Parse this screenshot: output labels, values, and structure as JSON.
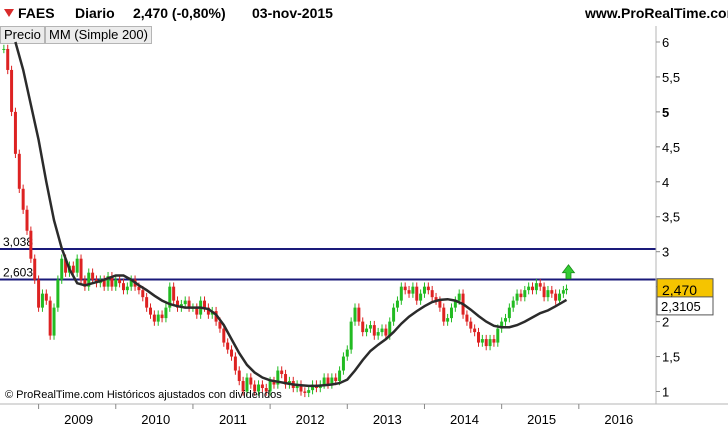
{
  "header": {
    "symbol": "FAES",
    "period": "Diario",
    "quote": "2,470 (-0,80%)",
    "date": "03-nov-2015",
    "site": "www.ProRealTime.com"
  },
  "legend": {
    "price": "Precio",
    "ma": "MM (Simple 200)"
  },
  "footer": {
    "copyright": "© ProRealTime.com Históricos ajustados con dividendos"
  },
  "colors": {
    "up": "#22bb22",
    "down": "#dd2222",
    "ma": "#2b2b2b",
    "hline": "#1a1a7a",
    "last_bg": "#f5c400",
    "arrow": "#33cc33"
  },
  "chart_data": {
    "type": "line",
    "title": "",
    "xlabel": "",
    "ylabel": "",
    "x_ticks": [
      "2009",
      "2010",
      "2011",
      "2012",
      "2013",
      "2014",
      "2015",
      "2016"
    ],
    "y_ticks": [
      "6",
      "5,5",
      "5",
      "4,5",
      "4",
      "3,5",
      "3",
      "2,5",
      "2",
      "1,5",
      "1"
    ],
    "ylim": [
      0.85,
      6.2
    ],
    "xlim": [
      2008.5,
      2017.0
    ],
    "grid": false,
    "series": [
      {
        "name": "Precio",
        "style": "candlestick",
        "points": [
          [
            2008.55,
            5.9
          ],
          [
            2008.6,
            5.6
          ],
          [
            2008.65,
            5.0
          ],
          [
            2008.7,
            4.4
          ],
          [
            2008.75,
            3.9
          ],
          [
            2008.8,
            3.6
          ],
          [
            2008.85,
            3.3
          ],
          [
            2008.9,
            2.9
          ],
          [
            2008.95,
            2.6
          ],
          [
            2009.0,
            2.2
          ],
          [
            2009.05,
            2.4
          ],
          [
            2009.1,
            2.3
          ],
          [
            2009.15,
            1.8
          ],
          [
            2009.2,
            2.2
          ],
          [
            2009.25,
            2.6
          ],
          [
            2009.3,
            2.9
          ],
          [
            2009.35,
            2.7
          ],
          [
            2009.4,
            2.8
          ],
          [
            2009.45,
            2.7
          ],
          [
            2009.5,
            2.9
          ],
          [
            2009.55,
            2.6
          ],
          [
            2009.6,
            2.5
          ],
          [
            2009.65,
            2.7
          ],
          [
            2009.7,
            2.6
          ],
          [
            2009.75,
            2.55
          ],
          [
            2009.8,
            2.6
          ],
          [
            2009.85,
            2.5
          ],
          [
            2009.9,
            2.65
          ],
          [
            2009.95,
            2.5
          ],
          [
            2010.0,
            2.6
          ],
          [
            2010.05,
            2.55
          ],
          [
            2010.1,
            2.45
          ],
          [
            2010.15,
            2.5
          ],
          [
            2010.2,
            2.6
          ],
          [
            2010.25,
            2.5
          ],
          [
            2010.3,
            2.45
          ],
          [
            2010.35,
            2.35
          ],
          [
            2010.4,
            2.2
          ],
          [
            2010.45,
            2.1
          ],
          [
            2010.5,
            2.0
          ],
          [
            2010.55,
            2.1
          ],
          [
            2010.6,
            2.05
          ],
          [
            2010.65,
            2.2
          ],
          [
            2010.7,
            2.5
          ],
          [
            2010.75,
            2.3
          ],
          [
            2010.8,
            2.2
          ],
          [
            2010.85,
            2.25
          ],
          [
            2010.9,
            2.3
          ],
          [
            2010.95,
            2.2
          ],
          [
            2011.0,
            2.2
          ],
          [
            2011.05,
            2.1
          ],
          [
            2011.1,
            2.3
          ],
          [
            2011.15,
            2.2
          ],
          [
            2011.2,
            2.1
          ],
          [
            2011.25,
            2.15
          ],
          [
            2011.3,
            2.0
          ],
          [
            2011.35,
            1.9
          ],
          [
            2011.4,
            1.7
          ],
          [
            2011.45,
            1.6
          ],
          [
            2011.5,
            1.5
          ],
          [
            2011.55,
            1.3
          ],
          [
            2011.6,
            1.15
          ],
          [
            2011.65,
            1.0
          ],
          [
            2011.7,
            1.2
          ],
          [
            2011.75,
            1.1
          ],
          [
            2011.8,
            1.0
          ],
          [
            2011.85,
            1.1
          ],
          [
            2011.9,
            1.05
          ],
          [
            2011.95,
            1.0
          ],
          [
            2012.0,
            1.15
          ],
          [
            2012.05,
            1.1
          ],
          [
            2012.1,
            1.3
          ],
          [
            2012.15,
            1.25
          ],
          [
            2012.2,
            1.1
          ],
          [
            2012.25,
            1.15
          ],
          [
            2012.3,
            1.05
          ],
          [
            2012.35,
            1.1
          ],
          [
            2012.4,
            1.0
          ],
          [
            2012.45,
            0.98
          ],
          [
            2012.5,
            1.02
          ],
          [
            2012.55,
            1.1
          ],
          [
            2012.6,
            1.05
          ],
          [
            2012.65,
            1.1
          ],
          [
            2012.7,
            1.2
          ],
          [
            2012.75,
            1.1
          ],
          [
            2012.8,
            1.2
          ],
          [
            2012.85,
            1.15
          ],
          [
            2012.9,
            1.3
          ],
          [
            2012.95,
            1.5
          ],
          [
            2013.0,
            1.6
          ],
          [
            2013.05,
            2.0
          ],
          [
            2013.1,
            2.2
          ],
          [
            2013.15,
            2.0
          ],
          [
            2013.2,
            1.85
          ],
          [
            2013.25,
            1.9
          ],
          [
            2013.3,
            1.95
          ],
          [
            2013.35,
            1.8
          ],
          [
            2013.4,
            1.85
          ],
          [
            2013.45,
            1.9
          ],
          [
            2013.5,
            1.8
          ],
          [
            2013.55,
            2.0
          ],
          [
            2013.6,
            2.2
          ],
          [
            2013.65,
            2.3
          ],
          [
            2013.7,
            2.5
          ],
          [
            2013.75,
            2.45
          ],
          [
            2013.8,
            2.4
          ],
          [
            2013.85,
            2.5
          ],
          [
            2013.9,
            2.3
          ],
          [
            2013.95,
            2.4
          ],
          [
            2014.0,
            2.5
          ],
          [
            2014.05,
            2.45
          ],
          [
            2014.1,
            2.35
          ],
          [
            2014.15,
            2.3
          ],
          [
            2014.2,
            2.2
          ],
          [
            2014.25,
            2.0
          ],
          [
            2014.3,
            2.05
          ],
          [
            2014.35,
            2.2
          ],
          [
            2014.4,
            2.3
          ],
          [
            2014.45,
            2.4
          ],
          [
            2014.5,
            2.1
          ],
          [
            2014.55,
            2.0
          ],
          [
            2014.6,
            1.9
          ],
          [
            2014.65,
            1.85
          ],
          [
            2014.7,
            1.7
          ],
          [
            2014.75,
            1.75
          ],
          [
            2014.8,
            1.65
          ],
          [
            2014.85,
            1.75
          ],
          [
            2014.9,
            1.7
          ],
          [
            2014.95,
            1.9
          ],
          [
            2015.0,
            2.0
          ],
          [
            2015.05,
            2.05
          ],
          [
            2015.1,
            2.2
          ],
          [
            2015.15,
            2.3
          ],
          [
            2015.2,
            2.4
          ],
          [
            2015.25,
            2.35
          ],
          [
            2015.3,
            2.45
          ],
          [
            2015.35,
            2.5
          ],
          [
            2015.4,
            2.45
          ],
          [
            2015.45,
            2.55
          ],
          [
            2015.5,
            2.5
          ],
          [
            2015.55,
            2.35
          ],
          [
            2015.6,
            2.45
          ],
          [
            2015.65,
            2.4
          ],
          [
            2015.7,
            2.3
          ],
          [
            2015.75,
            2.4
          ],
          [
            2015.8,
            2.45
          ],
          [
            2015.84,
            2.47
          ]
        ]
      },
      {
        "name": "MM (Simple 200)",
        "style": "line",
        "points": [
          [
            2008.7,
            6.0
          ],
          [
            2008.8,
            5.6
          ],
          [
            2008.9,
            5.1
          ],
          [
            2009.0,
            4.6
          ],
          [
            2009.1,
            4.0
          ],
          [
            2009.2,
            3.45
          ],
          [
            2009.3,
            3.05
          ],
          [
            2009.4,
            2.75
          ],
          [
            2009.5,
            2.55
          ],
          [
            2009.6,
            2.52
          ],
          [
            2009.7,
            2.55
          ],
          [
            2009.8,
            2.58
          ],
          [
            2009.9,
            2.62
          ],
          [
            2010.0,
            2.66
          ],
          [
            2010.1,
            2.66
          ],
          [
            2010.2,
            2.6
          ],
          [
            2010.3,
            2.52
          ],
          [
            2010.4,
            2.45
          ],
          [
            2010.5,
            2.37
          ],
          [
            2010.6,
            2.3
          ],
          [
            2010.7,
            2.25
          ],
          [
            2010.8,
            2.22
          ],
          [
            2010.9,
            2.2
          ],
          [
            2011.0,
            2.2
          ],
          [
            2011.1,
            2.2
          ],
          [
            2011.2,
            2.18
          ],
          [
            2011.3,
            2.1
          ],
          [
            2011.4,
            1.95
          ],
          [
            2011.5,
            1.75
          ],
          [
            2011.6,
            1.55
          ],
          [
            2011.7,
            1.38
          ],
          [
            2011.8,
            1.27
          ],
          [
            2011.9,
            1.2
          ],
          [
            2012.0,
            1.16
          ],
          [
            2012.1,
            1.14
          ],
          [
            2012.2,
            1.12
          ],
          [
            2012.3,
            1.1
          ],
          [
            2012.4,
            1.09
          ],
          [
            2012.5,
            1.08
          ],
          [
            2012.6,
            1.08
          ],
          [
            2012.7,
            1.09
          ],
          [
            2012.8,
            1.1
          ],
          [
            2012.9,
            1.12
          ],
          [
            2013.0,
            1.17
          ],
          [
            2013.1,
            1.3
          ],
          [
            2013.2,
            1.45
          ],
          [
            2013.3,
            1.58
          ],
          [
            2013.4,
            1.67
          ],
          [
            2013.5,
            1.75
          ],
          [
            2013.6,
            1.85
          ],
          [
            2013.7,
            1.97
          ],
          [
            2013.8,
            2.07
          ],
          [
            2013.9,
            2.15
          ],
          [
            2014.0,
            2.22
          ],
          [
            2014.1,
            2.28
          ],
          [
            2014.2,
            2.31
          ],
          [
            2014.3,
            2.32
          ],
          [
            2014.4,
            2.3
          ],
          [
            2014.5,
            2.25
          ],
          [
            2014.6,
            2.17
          ],
          [
            2014.7,
            2.08
          ],
          [
            2014.8,
            2.0
          ],
          [
            2014.9,
            1.94
          ],
          [
            2015.0,
            1.92
          ],
          [
            2015.1,
            1.92
          ],
          [
            2015.2,
            1.95
          ],
          [
            2015.3,
            2.0
          ],
          [
            2015.4,
            2.06
          ],
          [
            2015.5,
            2.12
          ],
          [
            2015.6,
            2.16
          ],
          [
            2015.7,
            2.22
          ],
          [
            2015.84,
            2.31
          ]
        ]
      }
    ],
    "horizontal_lines": [
      {
        "label": "3,038",
        "value": 3.038
      },
      {
        "label": "2,603",
        "value": 2.603
      }
    ],
    "last_price": {
      "label": "2,470",
      "value": 2.47
    },
    "last_ma": {
      "label": "2,3105",
      "value": 2.3105
    }
  }
}
